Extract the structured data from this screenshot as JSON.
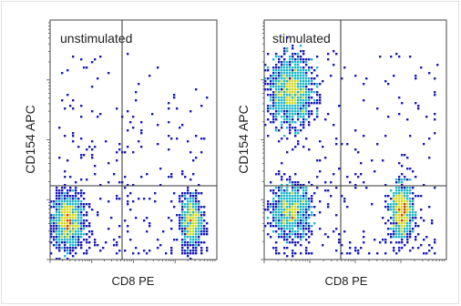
{
  "colors": {
    "background": "#ffffff",
    "axis": "#444444",
    "gate_line": "#333333",
    "density_low": "#1a1ab8",
    "density_mid": "#1fb8c8",
    "density_high": "#d8d81a",
    "density_peak": "#d83a12"
  },
  "chart_data": [
    {
      "type": "scatter",
      "plot_style": "pseudocolor density",
      "title": "unstimulated",
      "xlabel": "CD8 PE",
      "ylabel": "CD154 APC",
      "x_scale": "log",
      "y_scale": "log",
      "quadrant_gate": {
        "x_fraction": 0.44,
        "y_fraction": 0.3
      },
      "grid": false,
      "populations": [
        {
          "name": "CD8-negative, CD154-negative",
          "x_center": 0.11,
          "y_center": 0.16,
          "density": "high"
        },
        {
          "name": "CD8-positive, CD154-negative",
          "x_center": 0.85,
          "y_center": 0.16,
          "density": "moderate"
        }
      ]
    },
    {
      "type": "scatter",
      "plot_style": "pseudocolor density",
      "title": "stimulated",
      "xlabel": "CD8 PE",
      "ylabel": "CD154 APC",
      "x_scale": "log",
      "y_scale": "log",
      "quadrant_gate": {
        "x_fraction": 0.44,
        "y_fraction": 0.3
      },
      "grid": false,
      "populations": [
        {
          "name": "CD8-negative, CD154-positive",
          "x_center": 0.15,
          "y_center": 0.7,
          "density": "high"
        },
        {
          "name": "CD8-negative, CD154-negative",
          "x_center": 0.15,
          "y_center": 0.2,
          "density": "moderate"
        },
        {
          "name": "CD8-positive, CD154-negative",
          "x_center": 0.76,
          "y_center": 0.2,
          "density": "moderate"
        }
      ]
    }
  ]
}
